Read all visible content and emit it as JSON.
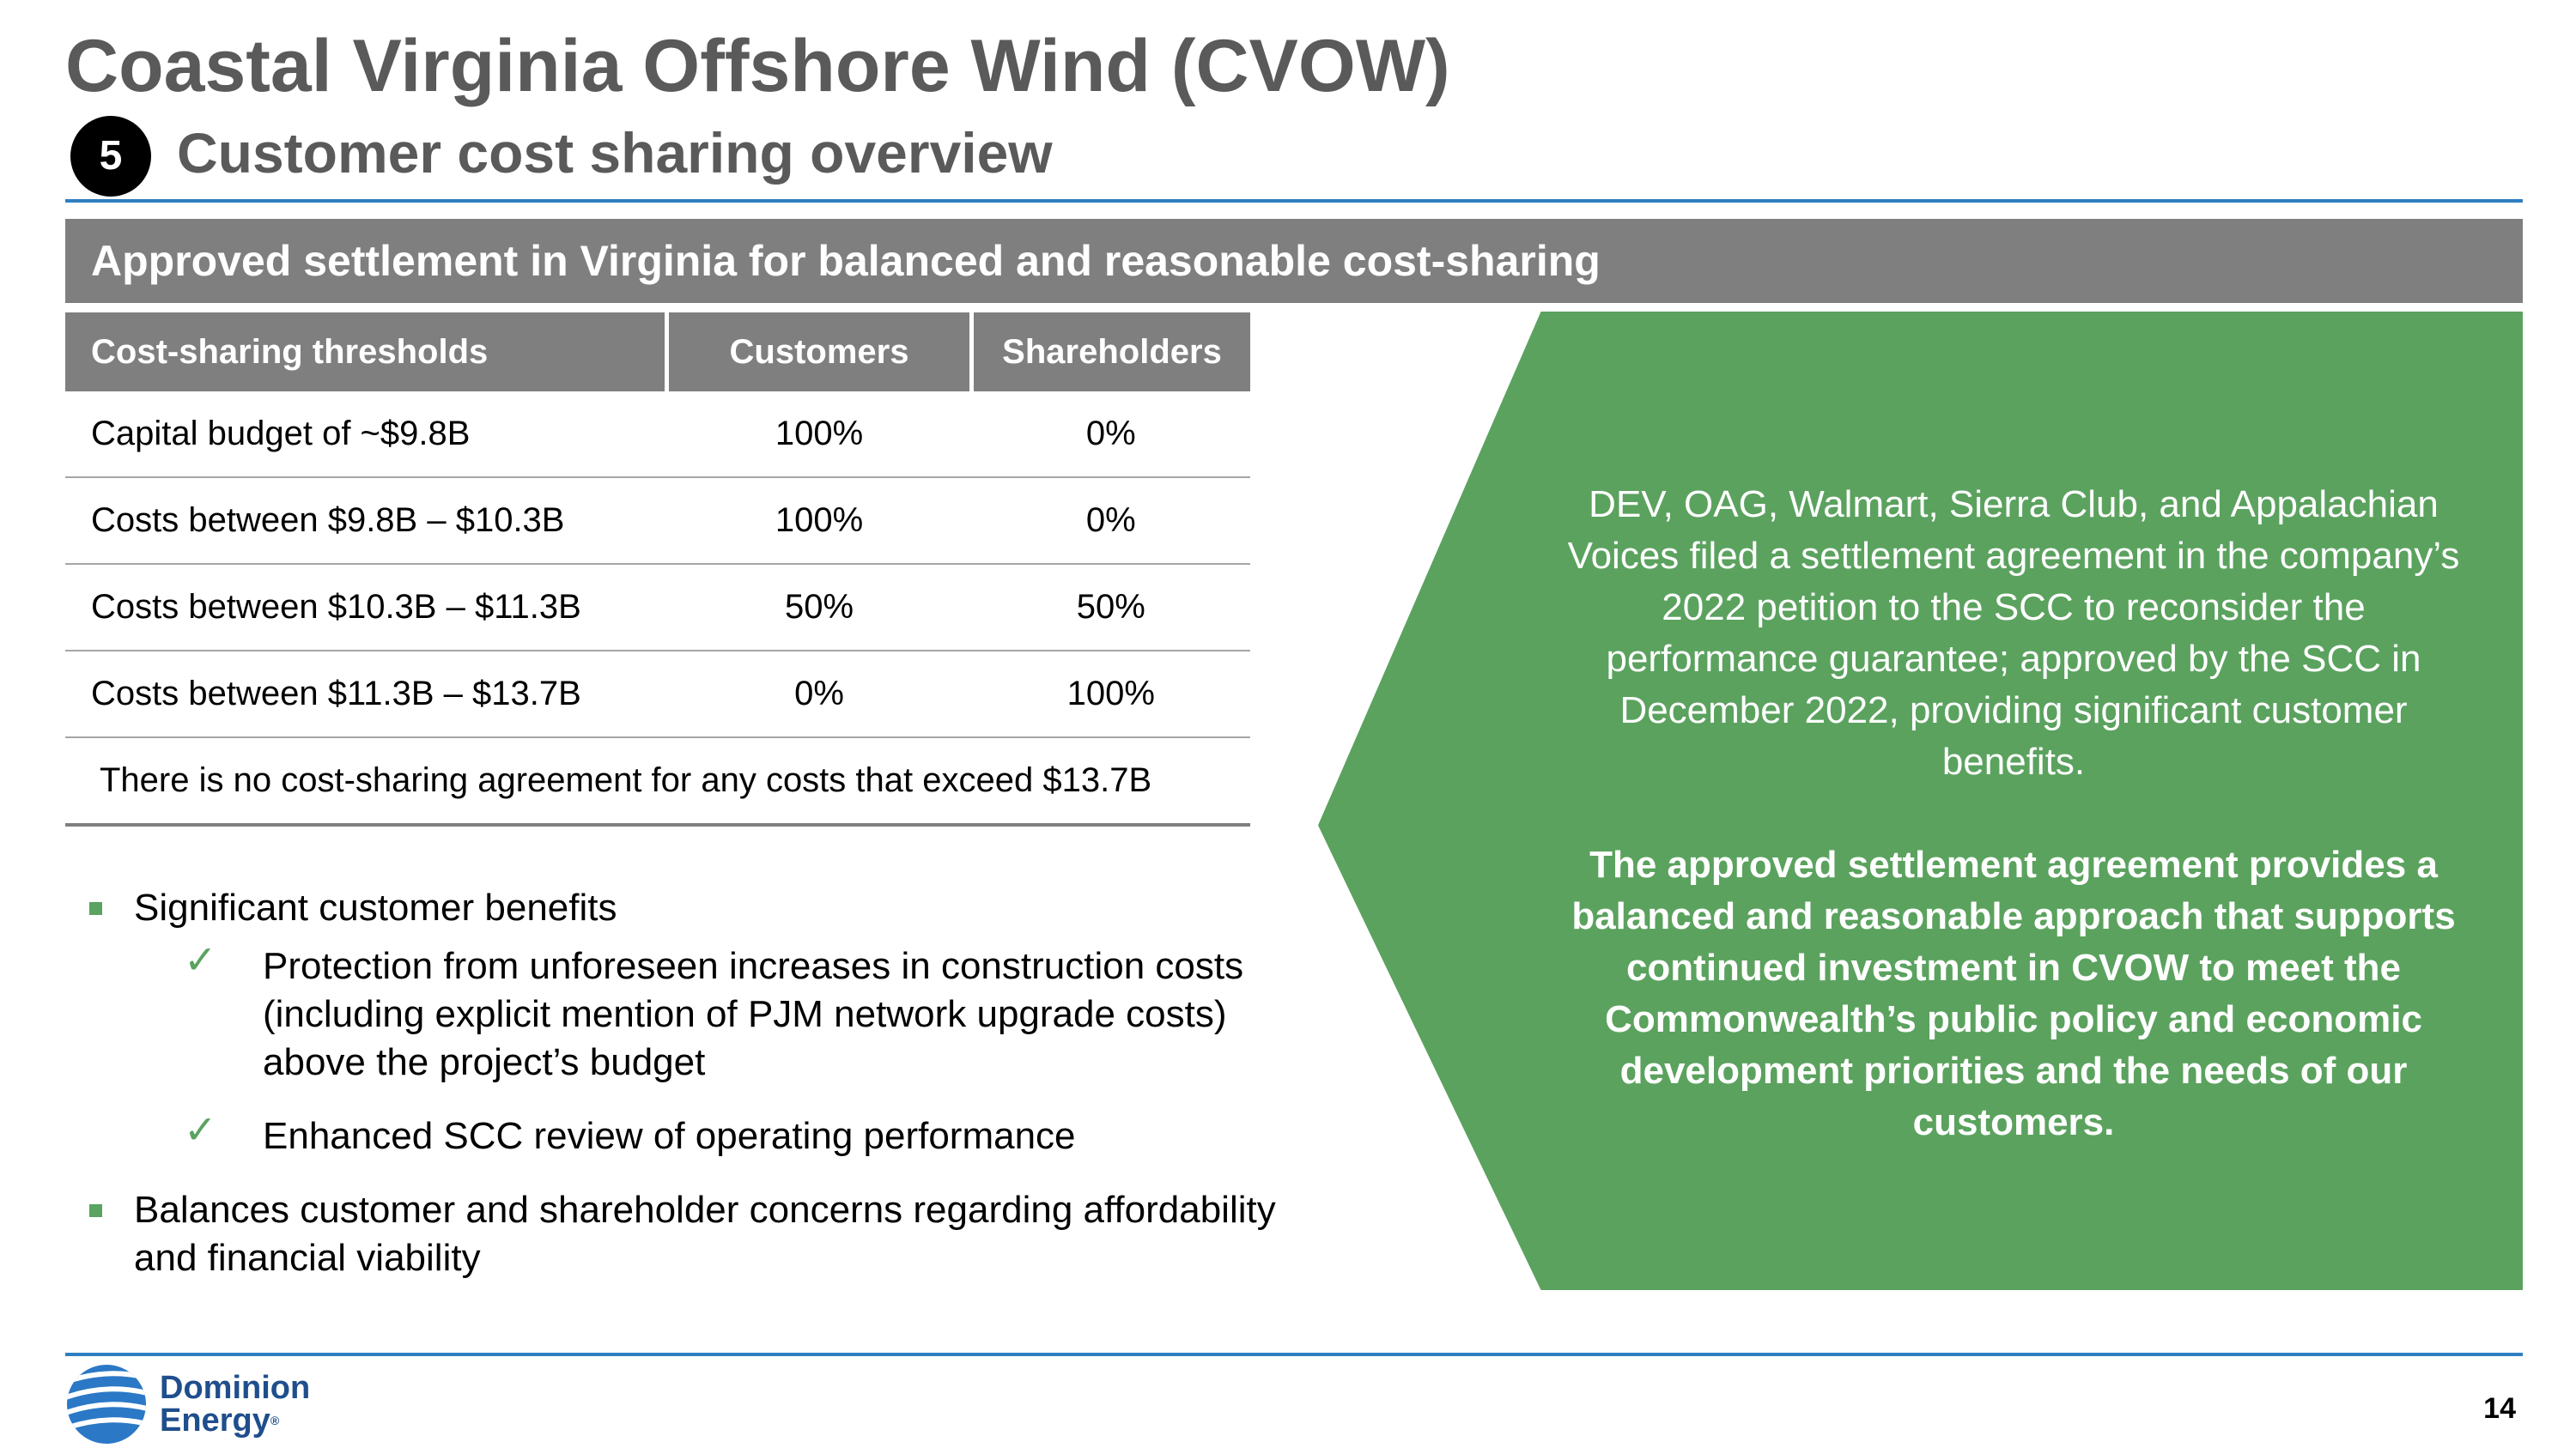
{
  "header": {
    "title": "Coastal Virginia Offshore Wind (CVOW)",
    "step_number": "5",
    "subtitle": "Customer cost sharing overview"
  },
  "banner": "Approved settlement in Virginia for balanced and reasonable cost-sharing",
  "table": {
    "headers": [
      "Cost-sharing thresholds",
      "Customers",
      "Shareholders"
    ],
    "rows": [
      {
        "threshold": "Capital budget of ~$9.8B",
        "customers": "100%",
        "shareholders": "0%"
      },
      {
        "threshold": "Costs between $9.8B – $10.3B",
        "customers": "100%",
        "shareholders": "0%"
      },
      {
        "threshold": "Costs between $10.3B – $11.3B",
        "customers": "50%",
        "shareholders": "50%"
      },
      {
        "threshold": "Costs between $11.3B – $13.7B",
        "customers": "0%",
        "shareholders": "100%"
      }
    ],
    "note": "There is no cost-sharing agreement for any costs that exceed $13.7B"
  },
  "bullets": {
    "b1": "Significant customer benefits",
    "b1_checks": [
      "Protection from unforeseen increases in construction costs (including explicit mention of PJM network upgrade costs) above the project’s budget",
      "Enhanced SCC review of operating performance"
    ],
    "b2": "Balances customer and shareholder concerns regarding affordability and financial viability"
  },
  "callout": {
    "para1": "DEV, OAG, Walmart, Sierra Club, and Appalachian Voices filed a settlement agreement in the company’s 2022 petition to the SCC to reconsider the performance guarantee; approved by the SCC in December 2022, providing significant customer benefits.",
    "para2": "The approved settlement agreement provides a balanced and reasonable approach that supports continued investment in CVOW to meet the Commonwealth’s public policy and economic development priorities and the needs of our customers."
  },
  "footer": {
    "logo_line1": "Dominion",
    "logo_line2": "Energy",
    "logo_reg": "®",
    "page_number": "14"
  },
  "colors": {
    "accent_blue": "#2f7fc1",
    "banner_gray": "#7f7f7f",
    "callout_green": "#5ba25f",
    "brand_navy": "#1f4e8c"
  }
}
